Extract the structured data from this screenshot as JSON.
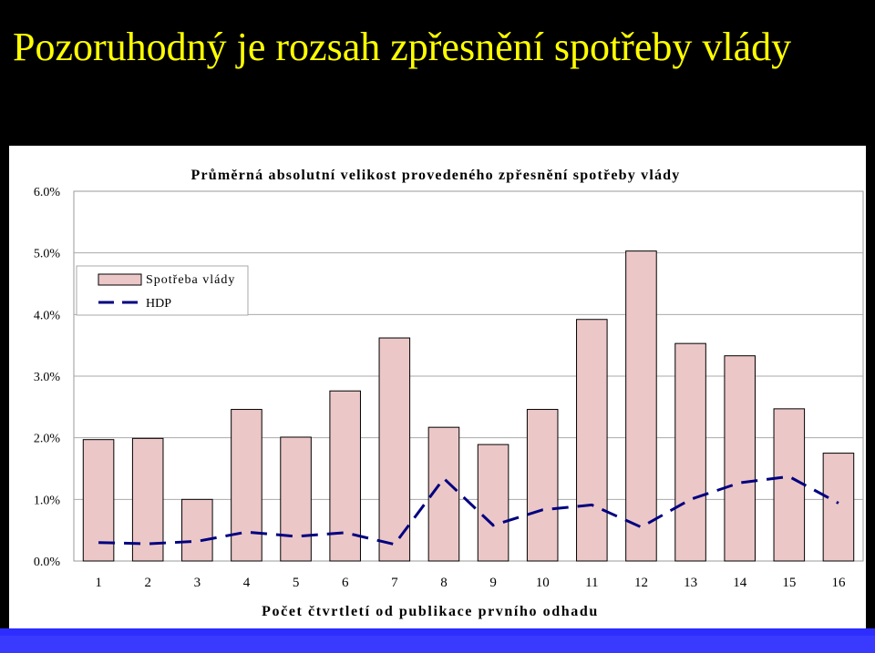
{
  "slide": {
    "title": "Pozoruhodný je rozsah zpřesnění spotřeby vlády"
  },
  "colors": {
    "background": "#000000",
    "title": "#ffff00",
    "bar_fill": "#ecc7c7",
    "line": "#000080",
    "bottom_bar": "#2d2dff"
  },
  "chart_data": {
    "type": "bar",
    "title": "Průměrná absolutní velikost provedeného zpřesnění spotřeby vlády",
    "xlabel": "Počet čtvrtletí od publikace prvního odhadu",
    "ylabel": "",
    "categories": [
      "1",
      "2",
      "3",
      "4",
      "5",
      "6",
      "7",
      "8",
      "9",
      "10",
      "11",
      "12",
      "13",
      "14",
      "15",
      "16"
    ],
    "ylim": [
      0,
      0.06
    ],
    "yticks": [
      "0.0%",
      "1.0%",
      "2.0%",
      "3.0%",
      "4.0%",
      "5.0%",
      "6.0%"
    ],
    "grid": "horizontal",
    "legend_position": "upper-left",
    "series": [
      {
        "name": "Spotřeba vlády",
        "style": "bar",
        "values": [
          0.0197,
          0.0199,
          0.01,
          0.0246,
          0.0201,
          0.0276,
          0.0362,
          0.0217,
          0.0189,
          0.0246,
          0.0392,
          0.0503,
          0.0353,
          0.0333,
          0.0247,
          0.0175
        ]
      },
      {
        "name": "HDP",
        "style": "dashed-line",
        "values": [
          0.003,
          0.0028,
          0.0032,
          0.0047,
          0.004,
          0.0046,
          0.0027,
          0.0134,
          0.0058,
          0.0083,
          0.0091,
          0.0055,
          0.01,
          0.0127,
          0.0137,
          0.0094
        ]
      }
    ]
  }
}
